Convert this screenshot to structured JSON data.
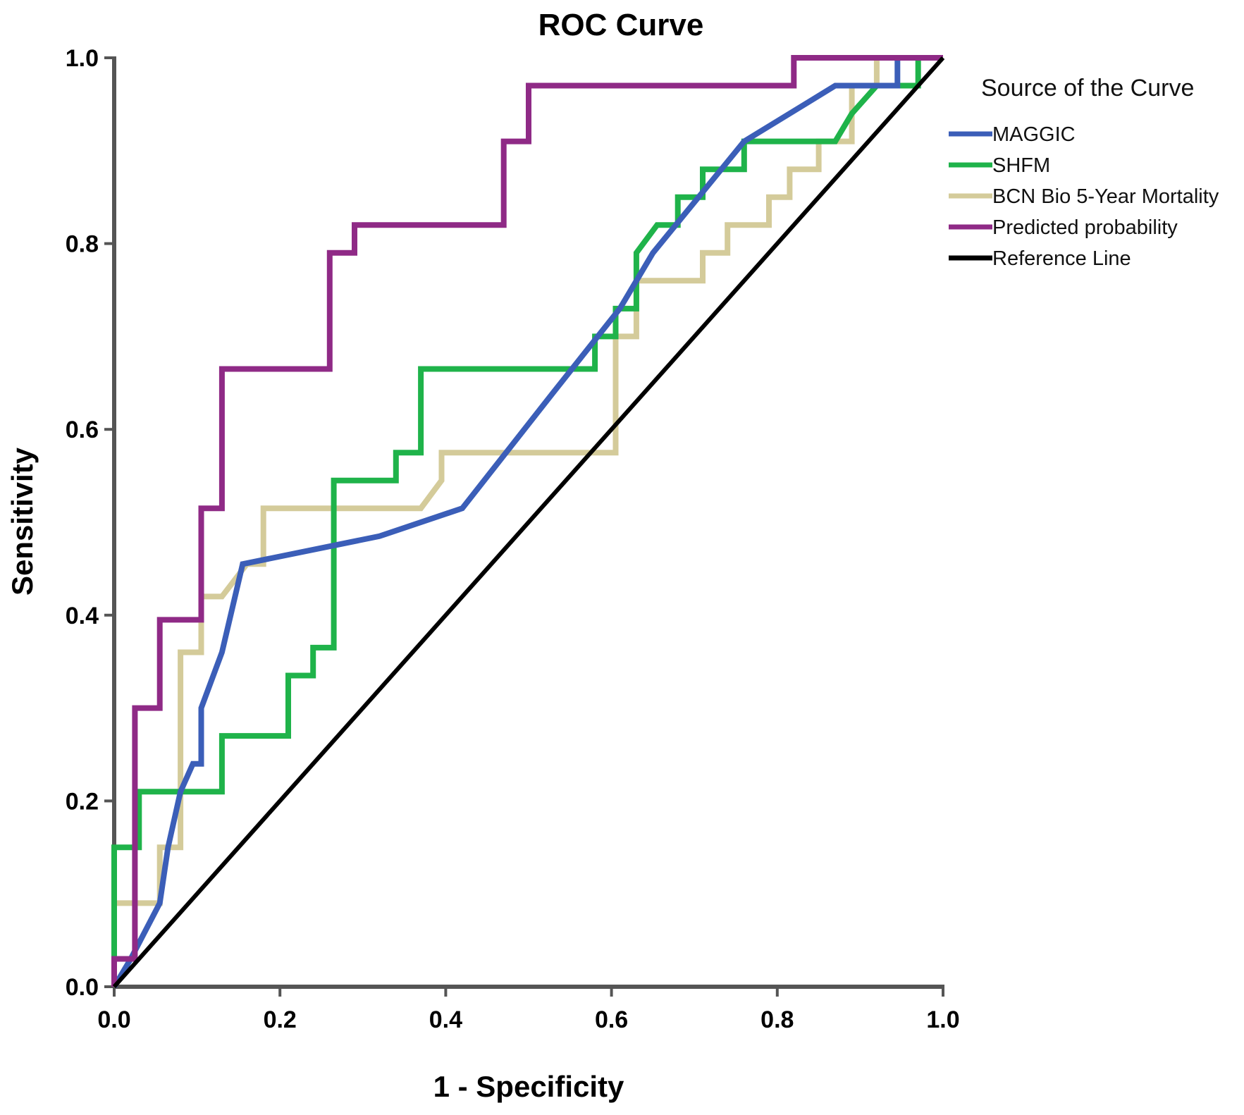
{
  "chart_data": {
    "type": "line",
    "title": "ROC Curve",
    "xlabel": "1 - Specificity",
    "ylabel": "Sensitivity",
    "xlim": [
      0,
      1
    ],
    "ylim": [
      0,
      1
    ],
    "xticks": [
      "0.0",
      "0.2",
      "0.4",
      "0.6",
      "0.8",
      "1.0"
    ],
    "yticks": [
      "0.0",
      "0.2",
      "0.4",
      "0.6",
      "0.8",
      "1.0"
    ],
    "grid": false,
    "legend": {
      "title": "Source of the Curve",
      "placement": "right"
    },
    "series": [
      {
        "name": "MAGGIC",
        "color": "#3b5eb8",
        "x": [
          0.0,
          0.02,
          0.055,
          0.065,
          0.08,
          0.095,
          0.105,
          0.105,
          0.13,
          0.155,
          0.32,
          0.42,
          0.53,
          0.61,
          0.65,
          0.76,
          0.87,
          0.945,
          0.945,
          0.955,
          1.0
        ],
        "y": [
          0.0,
          0.03,
          0.09,
          0.15,
          0.21,
          0.24,
          0.24,
          0.3,
          0.36,
          0.455,
          0.485,
          0.515,
          0.64,
          0.73,
          0.79,
          0.91,
          0.97,
          0.97,
          1.0,
          1.0,
          1.0
        ]
      },
      {
        "name": "SHFM",
        "color": "#1fb34a",
        "x": [
          0.0,
          0.0,
          0.0,
          0.03,
          0.03,
          0.13,
          0.13,
          0.21,
          0.21,
          0.24,
          0.24,
          0.265,
          0.265,
          0.34,
          0.34,
          0.37,
          0.37,
          0.58,
          0.58,
          0.605,
          0.605,
          0.63,
          0.63,
          0.655,
          0.68,
          0.68,
          0.71,
          0.71,
          0.76,
          0.76,
          0.87,
          0.89,
          0.89,
          0.92,
          0.92,
          0.97,
          0.97,
          1.0
        ],
        "y": [
          0.0,
          0.15,
          0.15,
          0.15,
          0.21,
          0.21,
          0.27,
          0.27,
          0.335,
          0.335,
          0.365,
          0.365,
          0.545,
          0.545,
          0.575,
          0.575,
          0.665,
          0.665,
          0.7,
          0.7,
          0.73,
          0.73,
          0.79,
          0.82,
          0.82,
          0.85,
          0.85,
          0.88,
          0.88,
          0.91,
          0.91,
          0.94,
          0.94,
          0.97,
          0.97,
          0.97,
          1.0,
          1.0
        ]
      },
      {
        "name": "BCN Bio 5-Year Mortality",
        "color": "#d4cb9a",
        "x": [
          0.0,
          0.0,
          0.055,
          0.055,
          0.08,
          0.08,
          0.105,
          0.105,
          0.13,
          0.16,
          0.18,
          0.18,
          0.37,
          0.395,
          0.395,
          0.605,
          0.605,
          0.63,
          0.63,
          0.71,
          0.71,
          0.74,
          0.74,
          0.79,
          0.79,
          0.815,
          0.815,
          0.85,
          0.85,
          0.89,
          0.89,
          0.92,
          0.92,
          1.0
        ],
        "y": [
          0.0,
          0.09,
          0.09,
          0.15,
          0.15,
          0.36,
          0.36,
          0.42,
          0.42,
          0.455,
          0.455,
          0.515,
          0.515,
          0.545,
          0.575,
          0.575,
          0.7,
          0.7,
          0.76,
          0.76,
          0.79,
          0.79,
          0.82,
          0.82,
          0.85,
          0.85,
          0.88,
          0.88,
          0.91,
          0.91,
          0.97,
          0.97,
          1.0,
          1.0
        ]
      },
      {
        "name": "Predicted probability",
        "color": "#8f2a86",
        "x": [
          0.0,
          0.0,
          0.025,
          0.025,
          0.055,
          0.055,
          0.105,
          0.105,
          0.13,
          0.13,
          0.26,
          0.26,
          0.29,
          0.29,
          0.47,
          0.47,
          0.5,
          0.5,
          0.82,
          0.82,
          1.0
        ],
        "y": [
          0.0,
          0.03,
          0.03,
          0.3,
          0.3,
          0.395,
          0.395,
          0.515,
          0.515,
          0.665,
          0.665,
          0.79,
          0.79,
          0.82,
          0.82,
          0.91,
          0.91,
          0.97,
          0.97,
          1.0,
          1.0
        ]
      },
      {
        "name": "Reference Line",
        "color": "#000000",
        "x": [
          0.0,
          1.0
        ],
        "y": [
          0.0,
          1.0
        ]
      }
    ]
  }
}
